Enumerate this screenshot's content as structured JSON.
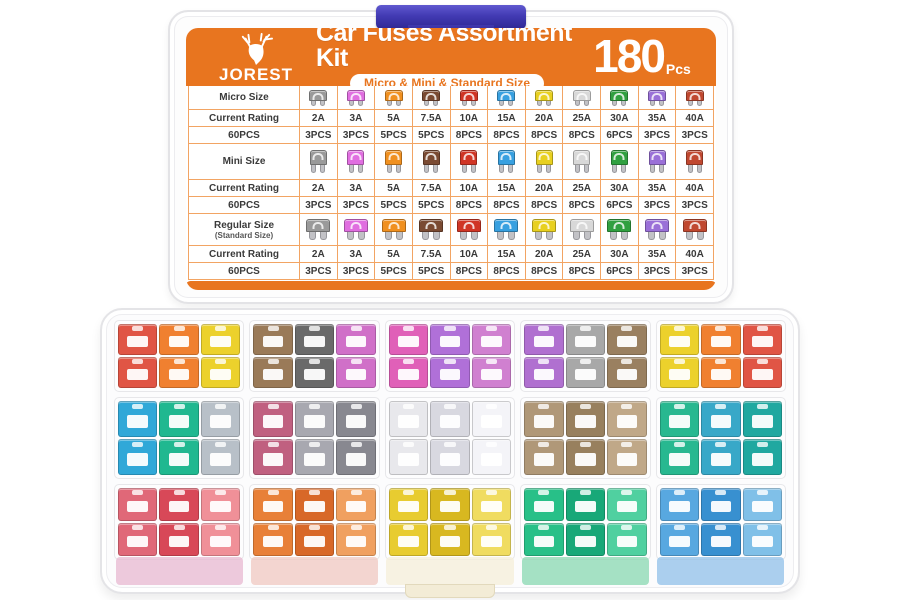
{
  "product": {
    "brand": "JOREST",
    "title": "Car Fuses Assortment Kit",
    "subtitle": "Micro & Mini & Standard Size",
    "count": "180",
    "count_unit": "Pcs"
  },
  "colors": {
    "accent_orange": "#e8751f",
    "table_line": "#f2a463",
    "latch_blue": "#3b34a8"
  },
  "spec_table": {
    "current_rating_label": "Current  Rating",
    "ratings": [
      "2A",
      "3A",
      "5A",
      "7.5A",
      "10A",
      "15A",
      "20A",
      "25A",
      "30A",
      "35A",
      "40A"
    ],
    "fuse_colors": [
      "#9a9a9a",
      "#e06ee0",
      "#f09020",
      "#7a4a32",
      "#d03525",
      "#38a0e0",
      "#e8d020",
      "#d8d8d8",
      "#30a040",
      "#9a70d8",
      "#c04830"
    ],
    "pcs": [
      "3PCS",
      "3PCS",
      "5PCS",
      "5PCS",
      "8PCS",
      "8PCS",
      "8PCS",
      "8PCS",
      "6PCS",
      "3PCS",
      "3PCS"
    ],
    "sections": [
      {
        "name": "Micro Size",
        "sub": "",
        "style": "micro",
        "total": "60PCS"
      },
      {
        "name": "Mini Size",
        "sub": "",
        "style": "mini",
        "total": "60PCS"
      },
      {
        "name": "Regular Size",
        "sub": "(Standard Size)",
        "style": "standard",
        "total": "60PCS"
      }
    ]
  },
  "open_case": {
    "rows": [
      {
        "size": "micro",
        "compartments": [
          [
            "#e05545",
            "#f08030",
            "#ecd12c"
          ],
          [
            "#9a7a58",
            "#6a6a6a",
            "#d070c8"
          ],
          [
            "#e060b8",
            "#b070d8",
            "#d080d0"
          ],
          [
            "#b070d0",
            "#a8a8a8",
            "#9a8060"
          ],
          [
            "#ecd12c",
            "#f08030",
            "#e05545"
          ]
        ]
      },
      {
        "size": "mini",
        "compartments": [
          [
            "#30a8d8",
            "#20b890",
            "#b8c0c8"
          ],
          [
            "#c06080",
            "#a8a8b0",
            "#888890"
          ],
          [
            "#e8e8ec",
            "#d8d8e0",
            "#f4f4f8"
          ],
          [
            "#b09878",
            "#98805e",
            "#c0a888"
          ],
          [
            "#28b890",
            "#38a8c8",
            "#20a8a0"
          ]
        ]
      },
      {
        "size": "standard",
        "compartments": [
          [
            "#e06878",
            "#d84858",
            "#f09098"
          ],
          [
            "#e88038",
            "#d86828",
            "#f0a060"
          ],
          [
            "#e8cc30",
            "#d8b820",
            "#f0dc60"
          ],
          [
            "#28c088",
            "#18a878",
            "#50d0a0"
          ],
          [
            "#58a8e0",
            "#3890d0",
            "#80c0e8"
          ]
        ]
      }
    ],
    "bottom_reflections": [
      "#e8b8d0",
      "#f0c8c0",
      "#f5efd8",
      "#88d8b0",
      "#90c0e8"
    ]
  }
}
